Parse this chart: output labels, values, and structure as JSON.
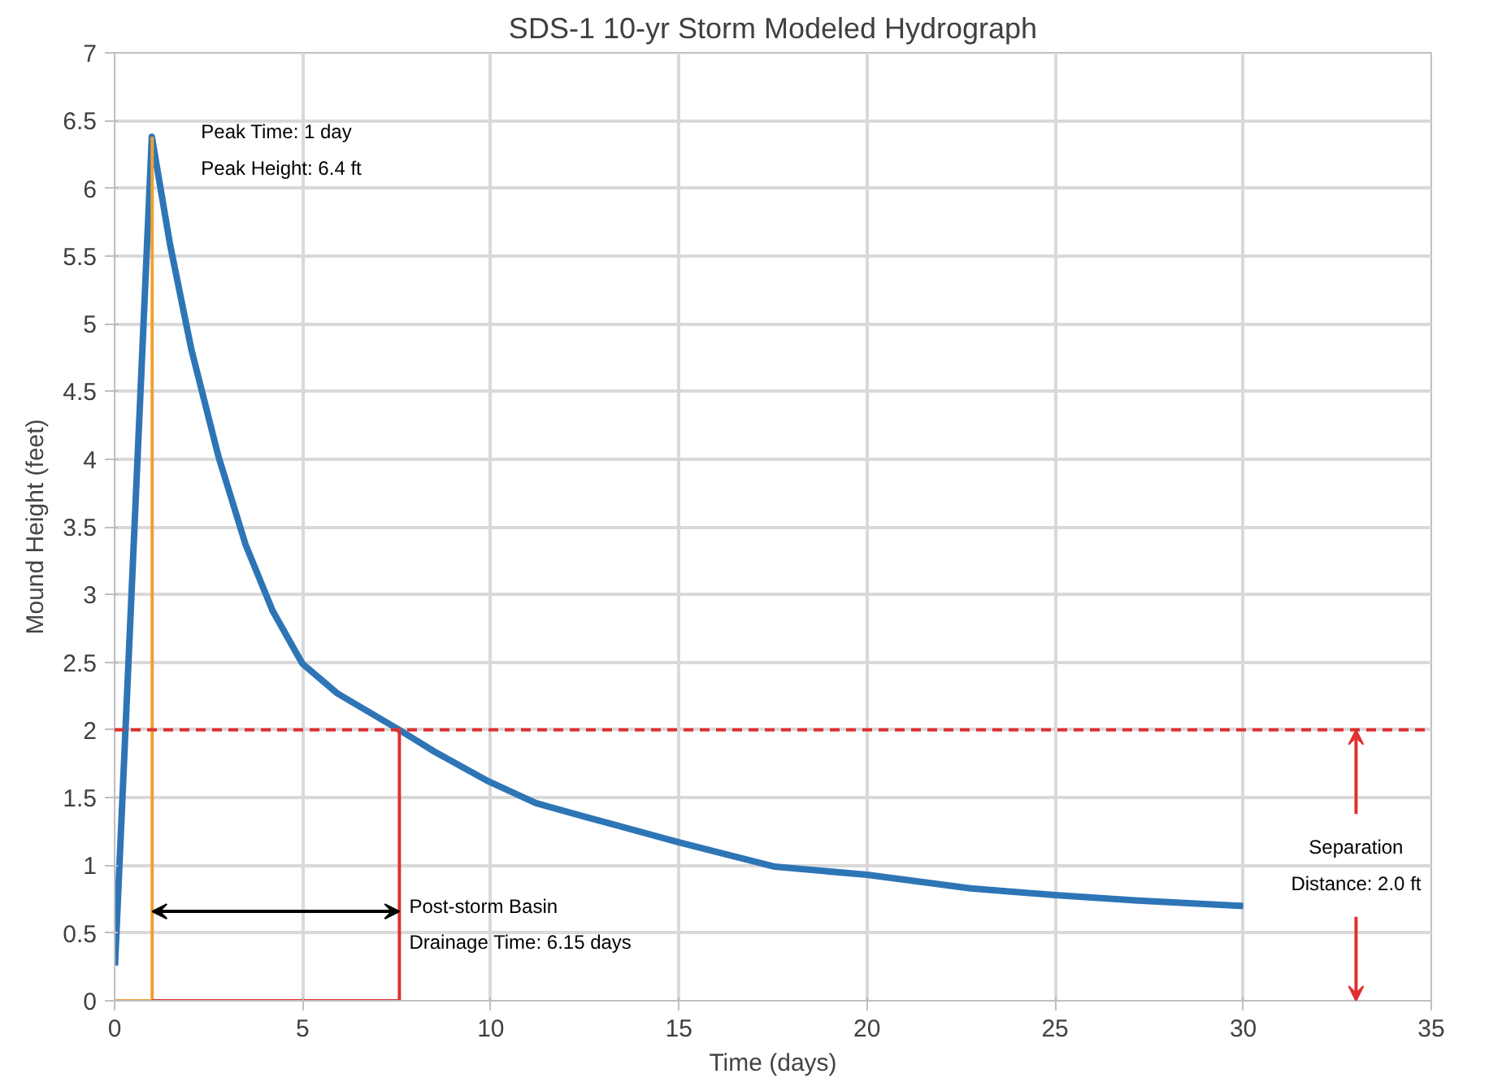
{
  "chart_data": {
    "type": "line",
    "title": "SDS-1 10-yr Storm Modeled Hydrograph",
    "xlabel": "Time (days)",
    "ylabel": "Mound Height (feet)",
    "xlim": [
      0,
      35
    ],
    "ylim": [
      0,
      7
    ],
    "xticks": [
      0,
      5,
      10,
      15,
      20,
      25,
      30,
      35
    ],
    "yticks": [
      0,
      0.5,
      1,
      1.5,
      2,
      2.5,
      3,
      3.5,
      4,
      4.5,
      5,
      5.5,
      6,
      6.5,
      7
    ],
    "grid": true,
    "marker": "none",
    "line_style": "solid",
    "series": [
      {
        "color": "#2e75b6",
        "x": [
          0.01,
          0.99,
          1.47,
          2.04,
          2.76,
          3.48,
          4.2,
          4.99,
          5.92,
          7.57,
          8.5,
          9.94,
          11.2,
          12.36,
          15,
          17.55,
          20,
          22.75,
          25,
          27.2,
          30
        ],
        "values": [
          0.26,
          6.38,
          5.59,
          4.81,
          4.02,
          3.37,
          2.88,
          2.49,
          2.27,
          2.0,
          1.84,
          1.62,
          1.46,
          1.37,
          1.17,
          0.99,
          0.93,
          0.83,
          0.78,
          0.74,
          0.7
        ]
      },
      {
        "color": "#f0a030",
        "x": [
          0,
          1,
          1
        ],
        "values": [
          0,
          0,
          6.38
        ]
      },
      {
        "color": "#e03030",
        "x": [
          1,
          7.57,
          7.57
        ],
        "values": [
          0,
          0,
          2.0
        ]
      }
    ],
    "ref_lines": [
      {
        "axis": "y",
        "value": 2,
        "color": "#e03030",
        "line_style": "dashed"
      }
    ],
    "annotations": [
      {
        "text": "Peak Time: 1 day\nPeak Height: 6.4 ft",
        "x": 1,
        "y": 6.38
      },
      {
        "text": "Post-storm Basin\nDrainage Time: 6.15 days",
        "x": 7.57,
        "y": 0.66
      },
      {
        "text": "Separation\nDistance: 2.0 ft",
        "x": 33,
        "y": 2
      }
    ]
  }
}
